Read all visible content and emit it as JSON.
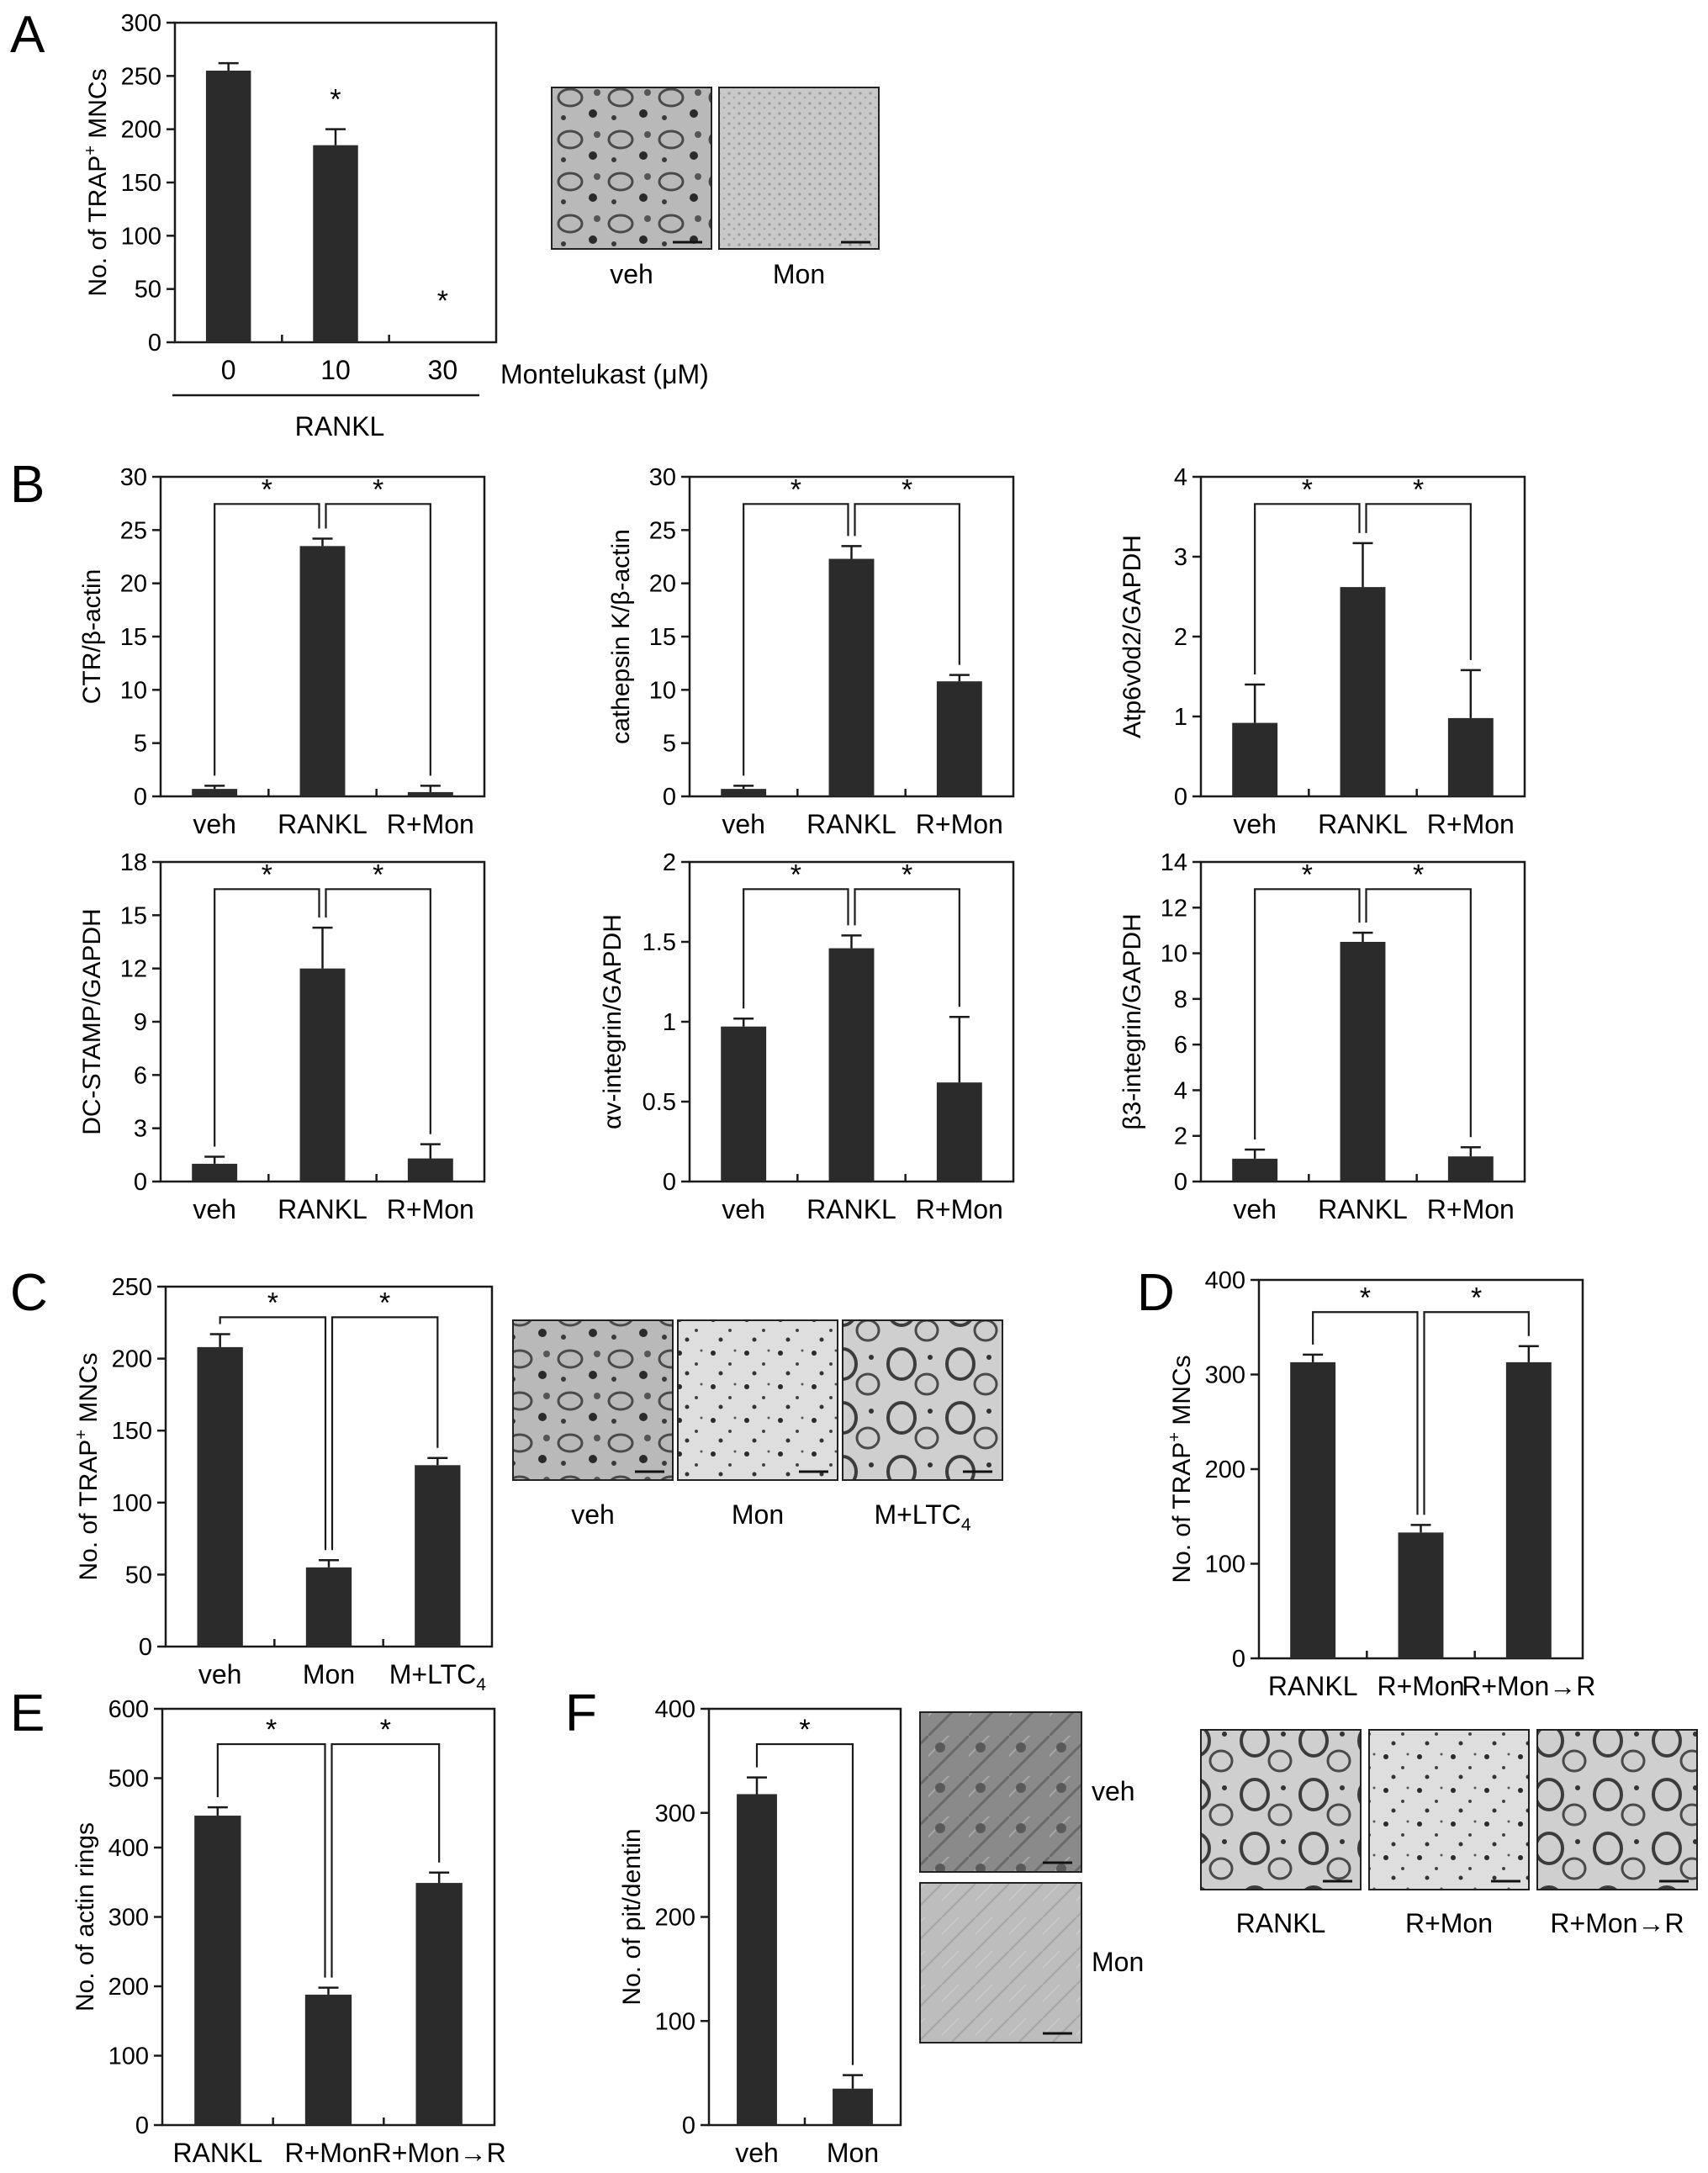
{
  "figure": {
    "panel_letters": [
      "A",
      "B",
      "C",
      "D",
      "E",
      "F"
    ],
    "micrograph_captions": {
      "A": [
        "veh",
        "Mon"
      ],
      "C": [
        "veh",
        "Mon",
        "M+LTC4"
      ],
      "D": [
        "RANKL",
        "R+Mon",
        "R+Mon→R"
      ],
      "F": [
        "veh",
        "Mon"
      ]
    }
  },
  "chart_data": [
    {
      "id": "A",
      "type": "bar",
      "categories": [
        "0",
        "10",
        "30"
      ],
      "values": [
        255,
        185,
        0
      ],
      "errors": [
        7,
        15,
        0
      ],
      "ylabel": "No. of TRAP⁺ MNCs",
      "ylim": [
        0,
        300
      ],
      "yticks": [
        0,
        50,
        100,
        150,
        200,
        250,
        300
      ],
      "significance": [
        {
          "type": "above_bar",
          "index": 1
        },
        {
          "type": "above_bar",
          "index": 2
        }
      ],
      "xlabel": "Montelukast (μM)",
      "group_label": "RANKL"
    },
    {
      "id": "B1",
      "type": "bar",
      "categories": [
        "veh",
        "RANKL",
        "R+Mon"
      ],
      "values": [
        0.7,
        23.5,
        0.4
      ],
      "errors": [
        0.3,
        0.7,
        0.6
      ],
      "ylabel": "CTR/β-actin",
      "ylim": [
        0,
        30
      ],
      "yticks": [
        0,
        5,
        10,
        15,
        20,
        25,
        30
      ],
      "significance": [
        {
          "type": "bracket",
          "pair": [
            0,
            1
          ]
        },
        {
          "type": "bracket",
          "pair": [
            1,
            2
          ]
        }
      ]
    },
    {
      "id": "B2",
      "type": "bar",
      "categories": [
        "veh",
        "RANKL",
        "R+Mon"
      ],
      "values": [
        0.7,
        22.3,
        10.8
      ],
      "errors": [
        0.3,
        1.2,
        0.6
      ],
      "ylabel": "cathepsin K/β-actin",
      "ylim": [
        0,
        30
      ],
      "yticks": [
        0,
        5,
        10,
        15,
        20,
        25,
        30
      ],
      "significance": [
        {
          "type": "bracket",
          "pair": [
            0,
            1
          ]
        },
        {
          "type": "bracket",
          "pair": [
            1,
            2
          ]
        }
      ]
    },
    {
      "id": "B3",
      "type": "bar",
      "categories": [
        "veh",
        "RANKL",
        "R+Mon"
      ],
      "values": [
        0.92,
        2.62,
        0.98
      ],
      "errors": [
        0.48,
        0.55,
        0.6
      ],
      "ylabel": "Atp6v0d2/GAPDH",
      "ylim": [
        0,
        4
      ],
      "yticks": [
        0,
        1,
        2,
        3,
        4
      ],
      "significance": [
        {
          "type": "bracket",
          "pair": [
            0,
            1
          ]
        },
        {
          "type": "bracket",
          "pair": [
            1,
            2
          ]
        }
      ]
    },
    {
      "id": "B4",
      "type": "bar",
      "categories": [
        "veh",
        "RANKL",
        "R+Mon"
      ],
      "values": [
        1.0,
        12.0,
        1.3
      ],
      "errors": [
        0.4,
        2.3,
        0.8
      ],
      "ylabel": "DC-STAMP/GAPDH",
      "ylim": [
        0,
        18
      ],
      "yticks": [
        0,
        3,
        6,
        9,
        12,
        15,
        18
      ],
      "significance": [
        {
          "type": "bracket",
          "pair": [
            0,
            1
          ]
        },
        {
          "type": "bracket",
          "pair": [
            1,
            2
          ]
        }
      ]
    },
    {
      "id": "B5",
      "type": "bar",
      "categories": [
        "veh",
        "RANKL",
        "R+Mon"
      ],
      "values": [
        0.97,
        1.46,
        0.62
      ],
      "errors": [
        0.05,
        0.08,
        0.41
      ],
      "ylabel": "αv-integrin/GAPDH",
      "ylim": [
        0,
        2
      ],
      "yticks": [
        0,
        0.5,
        1,
        1.5,
        2
      ],
      "significance": [
        {
          "type": "bracket",
          "pair": [
            0,
            1
          ]
        },
        {
          "type": "bracket",
          "pair": [
            1,
            2
          ]
        }
      ]
    },
    {
      "id": "B6",
      "type": "bar",
      "categories": [
        "veh",
        "RANKL",
        "R+Mon"
      ],
      "values": [
        1.0,
        10.5,
        1.1
      ],
      "errors": [
        0.4,
        0.4,
        0.4
      ],
      "ylabel": "β3-integrin/GAPDH",
      "ylim": [
        0,
        14
      ],
      "yticks": [
        0,
        2,
        4,
        6,
        8,
        10,
        12,
        14
      ],
      "significance": [
        {
          "type": "bracket",
          "pair": [
            0,
            1
          ]
        },
        {
          "type": "bracket",
          "pair": [
            1,
            2
          ]
        }
      ]
    },
    {
      "id": "C",
      "type": "bar",
      "categories": [
        "veh",
        "Mon",
        "M+LTC4"
      ],
      "values": [
        208,
        55,
        126
      ],
      "errors": [
        9,
        5,
        5
      ],
      "ylabel": "No. of TRAP⁺ MNCs",
      "ylim": [
        0,
        250
      ],
      "yticks": [
        0,
        50,
        100,
        150,
        200,
        250
      ],
      "significance": [
        {
          "type": "bracket",
          "pair": [
            0,
            1
          ]
        },
        {
          "type": "bracket",
          "pair": [
            1,
            2
          ]
        }
      ]
    },
    {
      "id": "D",
      "type": "bar",
      "categories": [
        "RANKL",
        "R+Mon",
        "R+Mon→R"
      ],
      "values": [
        313,
        133,
        313
      ],
      "errors": [
        8,
        8,
        17
      ],
      "ylabel": "No. of TRAP⁺ MNCs",
      "ylim": [
        0,
        400
      ],
      "yticks": [
        0,
        100,
        200,
        300,
        400
      ],
      "significance": [
        {
          "type": "bracket",
          "pair": [
            0,
            1
          ]
        },
        {
          "type": "bracket",
          "pair": [
            1,
            2
          ]
        }
      ]
    },
    {
      "id": "E",
      "type": "bar",
      "categories": [
        "RANKL",
        "R+Mon",
        "R+Mon→R"
      ],
      "values": [
        446,
        188,
        349
      ],
      "errors": [
        12,
        10,
        15
      ],
      "ylabel": "No. of actin rings",
      "ylim": [
        0,
        600
      ],
      "yticks": [
        0,
        100,
        200,
        300,
        400,
        500,
        600
      ],
      "significance": [
        {
          "type": "bracket",
          "pair": [
            0,
            1
          ]
        },
        {
          "type": "bracket",
          "pair": [
            1,
            2
          ]
        }
      ]
    },
    {
      "id": "F",
      "type": "bar",
      "categories": [
        "veh",
        "Mon"
      ],
      "values": [
        318,
        35
      ],
      "errors": [
        16,
        13
      ],
      "ylabel": "No. of pit/dentin",
      "ylim": [
        0,
        400
      ],
      "yticks": [
        0,
        100,
        200,
        300,
        400
      ],
      "significance": [
        {
          "type": "bracket",
          "pair": [
            0,
            1
          ]
        }
      ]
    }
  ]
}
